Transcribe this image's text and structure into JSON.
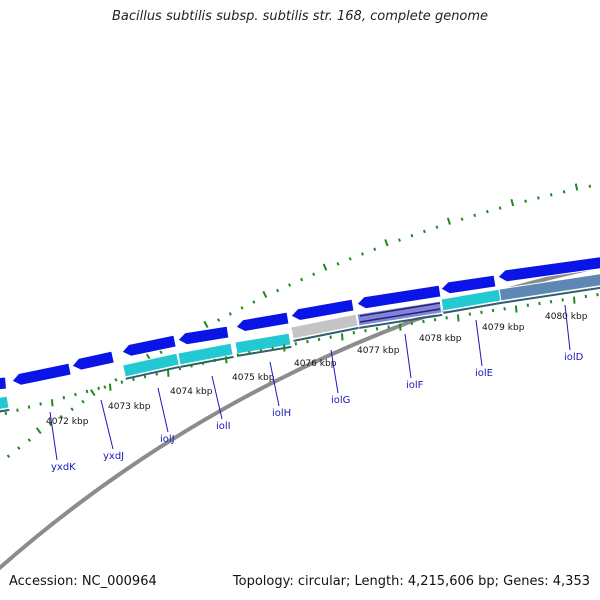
{
  "title": "Bacillus subtilis subsp. subtilis str. 168, complete genome",
  "footer": {
    "accession": "Accession: NC_000964",
    "summary": "Topology: circular; Length: 4,215,606 bp; Genes: 4,353"
  },
  "colors": {
    "backbone": "#8c8c8c",
    "forward_gene": "#0a14e6",
    "cyan_feature": "#22c8d2",
    "grey_feature": "#c4c4c4",
    "steel_feature": "#5f87b4",
    "tick": "#1e8a1e",
    "label": "#1a1ab8"
  },
  "ticks": [
    "4072 kbp",
    "4073 kbp",
    "4074 kbp",
    "4075 kbp",
    "4076 kbp",
    "4077 kbp",
    "4078 kbp",
    "4079 kbp",
    "4080 kbp"
  ],
  "genes": [
    "yxdK",
    "yxdJ",
    "iolJ",
    "iolI",
    "iolH",
    "iolG",
    "iolF",
    "iolE",
    "iolD"
  ]
}
